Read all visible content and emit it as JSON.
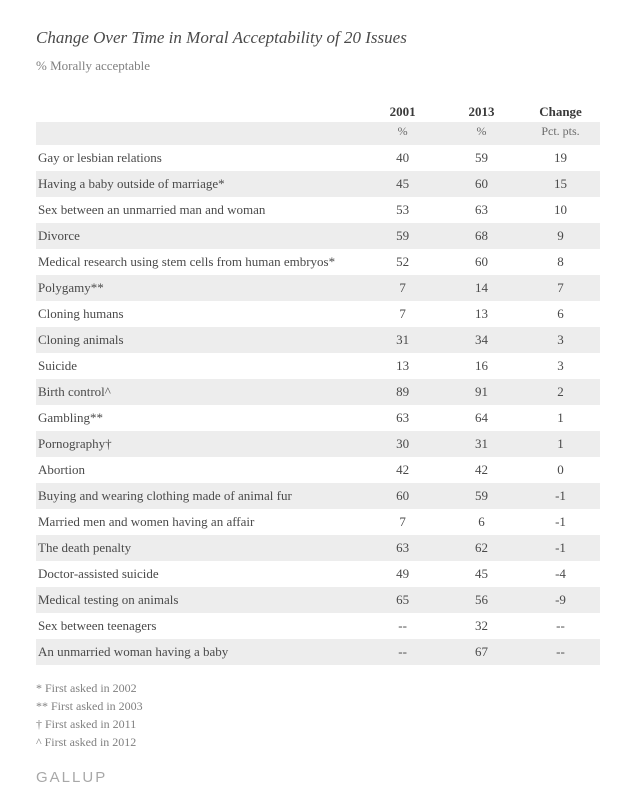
{
  "title": "Change Over Time in Moral Acceptability of 20 Issues",
  "subtitle": "% Morally acceptable",
  "columns": {
    "year1": "2001",
    "year2": "2013",
    "change": "Change",
    "unit1": "%",
    "unit2": "%",
    "unit3": "Pct. pts."
  },
  "rows": [
    {
      "label": "Gay or lesbian relations",
      "y1": "40",
      "y2": "59",
      "chg": "19"
    },
    {
      "label": "Having a baby outside of marriage*",
      "y1": "45",
      "y2": "60",
      "chg": "15"
    },
    {
      "label": "Sex between an unmarried man and woman",
      "y1": "53",
      "y2": "63",
      "chg": "10"
    },
    {
      "label": "Divorce",
      "y1": "59",
      "y2": "68",
      "chg": "9"
    },
    {
      "label": "Medical research using stem cells from human embryos*",
      "y1": "52",
      "y2": "60",
      "chg": "8"
    },
    {
      "label": "Polygamy**",
      "y1": "7",
      "y2": "14",
      "chg": "7"
    },
    {
      "label": "Cloning humans",
      "y1": "7",
      "y2": "13",
      "chg": "6"
    },
    {
      "label": "Cloning animals",
      "y1": "31",
      "y2": "34",
      "chg": "3"
    },
    {
      "label": "Suicide",
      "y1": "13",
      "y2": "16",
      "chg": "3"
    },
    {
      "label": "Birth control^",
      "y1": "89",
      "y2": "91",
      "chg": "2"
    },
    {
      "label": "Gambling**",
      "y1": "63",
      "y2": "64",
      "chg": "1"
    },
    {
      "label": "Pornography†",
      "y1": "30",
      "y2": "31",
      "chg": "1"
    },
    {
      "label": "Abortion",
      "y1": "42",
      "y2": "42",
      "chg": "0"
    },
    {
      "label": "Buying and wearing clothing made of animal fur",
      "y1": "60",
      "y2": "59",
      "chg": "-1"
    },
    {
      "label": "Married men and women having an affair",
      "y1": "7",
      "y2": "6",
      "chg": "-1"
    },
    {
      "label": "The death penalty",
      "y1": "63",
      "y2": "62",
      "chg": "-1"
    },
    {
      "label": "Doctor-assisted suicide",
      "y1": "49",
      "y2": "45",
      "chg": "-4"
    },
    {
      "label": "Medical testing on animals",
      "y1": "65",
      "y2": "56",
      "chg": "-9"
    },
    {
      "label": "Sex between teenagers",
      "y1": "--",
      "y2": "32",
      "chg": "--"
    },
    {
      "label": "An unmarried woman having a baby",
      "y1": "--",
      "y2": "67",
      "chg": "--"
    }
  ],
  "footnotes": [
    "* First asked in 2002",
    "** First asked in 2003",
    "† First asked in 2011",
    "^ First asked in 2012"
  ],
  "brand": "GALLUP",
  "style": {
    "type": "table",
    "background_color": "#ffffff",
    "row_alt_color": "#ededed",
    "text_color": "#4a4a4a",
    "muted_color": "#808080",
    "brand_color": "#a8a8a8",
    "title_fontsize": 17,
    "body_fontsize": 13,
    "footnote_fontsize": 12,
    "font_family": "Georgia serif",
    "column_align": [
      "left",
      "center",
      "center",
      "center"
    ]
  }
}
